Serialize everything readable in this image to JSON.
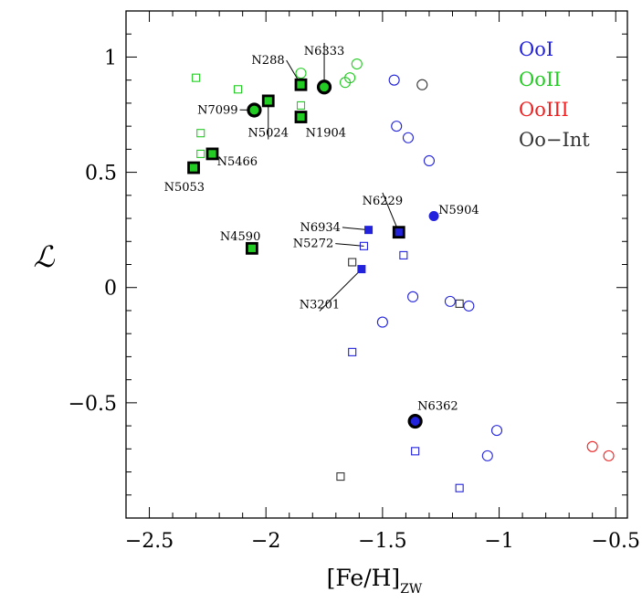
{
  "chart_data": {
    "type": "scatter",
    "xlabel_main": "[Fe/H]",
    "xlabel_sub": "ZW",
    "ylabel": "ℒ",
    "xlim": [
      -2.6,
      -0.45
    ],
    "ylim": [
      -1.0,
      1.2
    ],
    "xticks": [
      -2.5,
      -2.0,
      -1.5,
      -1.0,
      -0.5
    ],
    "xtick_labels": [
      "−2.5",
      "−2",
      "−1.5",
      "−1",
      "−0.5"
    ],
    "yticks": [
      -0.5,
      0,
      0.5,
      1
    ],
    "ytick_labels": [
      "−0.5",
      "0",
      "0.5",
      "1"
    ],
    "colors": {
      "OoI": "#2222dd",
      "OoII": "#22cc22",
      "OoIII": "#ee2222",
      "OoInt": "#333333"
    },
    "legend": [
      {
        "label": "OoI",
        "color": "#2222dd"
      },
      {
        "label": "OoII",
        "color": "#22cc22"
      },
      {
        "label": "OoIII",
        "color": "#ee2222"
      },
      {
        "label": "Oo−Int",
        "color": "#333333"
      }
    ],
    "series": [
      {
        "name": "OoII open circles",
        "marker": "circle-open",
        "color": "#22cc22",
        "x": [
          -1.85,
          -1.64,
          -1.61,
          -1.66
        ],
        "y": [
          0.93,
          0.91,
          0.97,
          0.89
        ]
      },
      {
        "name": "OoII open squares",
        "marker": "square-open",
        "color": "#22cc22",
        "x": [
          -2.3,
          -2.12,
          -2.28,
          -2.28,
          -1.85
        ],
        "y": [
          0.91,
          0.86,
          0.67,
          0.58,
          0.79
        ]
      },
      {
        "name": "OoII filled squares (bold)",
        "marker": "square-filled-bold",
        "color": "#22cc22",
        "x": [
          -1.99,
          -1.85,
          -1.85,
          -2.23,
          -2.31,
          -2.06
        ],
        "y": [
          0.81,
          0.88,
          0.74,
          0.58,
          0.52,
          0.17
        ]
      },
      {
        "name": "OoII filled circles (bold)",
        "marker": "circle-filled-bold",
        "color": "#22cc22",
        "x": [
          -1.75,
          -2.05
        ],
        "y": [
          0.87,
          0.77
        ]
      },
      {
        "name": "OoI open circles",
        "marker": "circle-open",
        "color": "#2222dd",
        "x": [
          -1.45,
          -1.44,
          -1.39,
          -1.3,
          -1.37,
          -1.21,
          -1.13,
          -1.5,
          -1.01,
          -1.05
        ],
        "y": [
          0.9,
          0.7,
          0.65,
          0.55,
          -0.04,
          -0.06,
          -0.08,
          -0.15,
          -0.62,
          -0.73
        ]
      },
      {
        "name": "OoI open squares",
        "marker": "square-open",
        "color": "#2222dd",
        "x": [
          -1.58,
          -1.41,
          -1.63,
          -1.36,
          -1.17
        ],
        "y": [
          0.18,
          0.14,
          -0.28,
          -0.71,
          -0.87
        ]
      },
      {
        "name": "OoI filled squares",
        "marker": "square-filled",
        "color": "#2222dd",
        "x": [
          -1.56,
          -1.59
        ],
        "y": [
          0.25,
          0.08
        ]
      },
      {
        "name": "OoI filled circles",
        "marker": "circle-filled",
        "color": "#2222dd",
        "x": [
          -1.28
        ],
        "y": [
          0.31
        ]
      },
      {
        "name": "OoI filled square (bold)",
        "marker": "square-filled-bold",
        "color": "#2222dd",
        "x": [
          -1.43
        ],
        "y": [
          0.24
        ]
      },
      {
        "name": "OoI filled circle (bold)",
        "marker": "circle-filled-bold",
        "color": "#2222dd",
        "x": [
          -1.36
        ],
        "y": [
          -0.58
        ]
      },
      {
        "name": "OoIII open circles",
        "marker": "circle-open",
        "color": "#ee2222",
        "x": [
          -0.6,
          -0.53
        ],
        "y": [
          -0.69,
          -0.73
        ]
      },
      {
        "name": "Oo-Int open circles",
        "marker": "circle-open",
        "color": "#333333",
        "x": [
          -1.33
        ],
        "y": [
          0.88
        ]
      },
      {
        "name": "Oo-Int open squares",
        "marker": "square-open",
        "color": "#333333",
        "x": [
          -1.63,
          -1.17,
          -1.68
        ],
        "y": [
          0.11,
          -0.07,
          -0.82
        ]
      }
    ],
    "annotations": [
      {
        "text": "N288",
        "x": -1.85,
        "y": 0.88,
        "tx": -1.92,
        "ty": 0.97,
        "anchor": "end",
        "line": true
      },
      {
        "text": "N6333",
        "x": -1.75,
        "y": 0.87,
        "tx": -1.75,
        "ty": 1.01,
        "anchor": "middle",
        "line": true
      },
      {
        "text": "N7099",
        "x": -2.05,
        "y": 0.77,
        "tx": -2.12,
        "ty": 0.755,
        "anchor": "end",
        "line": true
      },
      {
        "text": "N5024",
        "x": -1.99,
        "y": 0.81,
        "tx": -1.99,
        "ty": 0.655,
        "anchor": "middle",
        "line": true
      },
      {
        "text": "N1904",
        "x": -1.85,
        "y": 0.74,
        "tx": -1.83,
        "ty": 0.655,
        "anchor": "start",
        "line": false
      },
      {
        "text": "N5466",
        "x": -2.23,
        "y": 0.58,
        "tx": -2.21,
        "ty": 0.53,
        "anchor": "start",
        "line": false
      },
      {
        "text": "N5053",
        "x": -2.31,
        "y": 0.52,
        "tx": -2.35,
        "ty": 0.42,
        "anchor": "middle",
        "line": false
      },
      {
        "text": "N4590",
        "x": -2.06,
        "y": 0.17,
        "tx": -2.11,
        "ty": 0.205,
        "anchor": "middle",
        "line": false
      },
      {
        "text": "N6229",
        "x": -1.43,
        "y": 0.24,
        "tx": -1.5,
        "ty": 0.36,
        "anchor": "middle",
        "line": true
      },
      {
        "text": "N5904",
        "x": -1.28,
        "y": 0.31,
        "tx": -1.26,
        "ty": 0.32,
        "anchor": "start",
        "line": false
      },
      {
        "text": "N6934",
        "x": -1.56,
        "y": 0.25,
        "tx": -1.68,
        "ty": 0.245,
        "anchor": "end",
        "line": true
      },
      {
        "text": "N5272",
        "x": -1.58,
        "y": 0.18,
        "tx": -1.71,
        "ty": 0.175,
        "anchor": "end",
        "line": true
      },
      {
        "text": "N3201",
        "x": -1.59,
        "y": 0.08,
        "tx": -1.77,
        "ty": -0.09,
        "anchor": "middle",
        "line": true
      },
      {
        "text": "N6362",
        "x": -1.36,
        "y": -0.58,
        "tx": -1.35,
        "ty": -0.53,
        "anchor": "start",
        "line": false
      }
    ]
  }
}
